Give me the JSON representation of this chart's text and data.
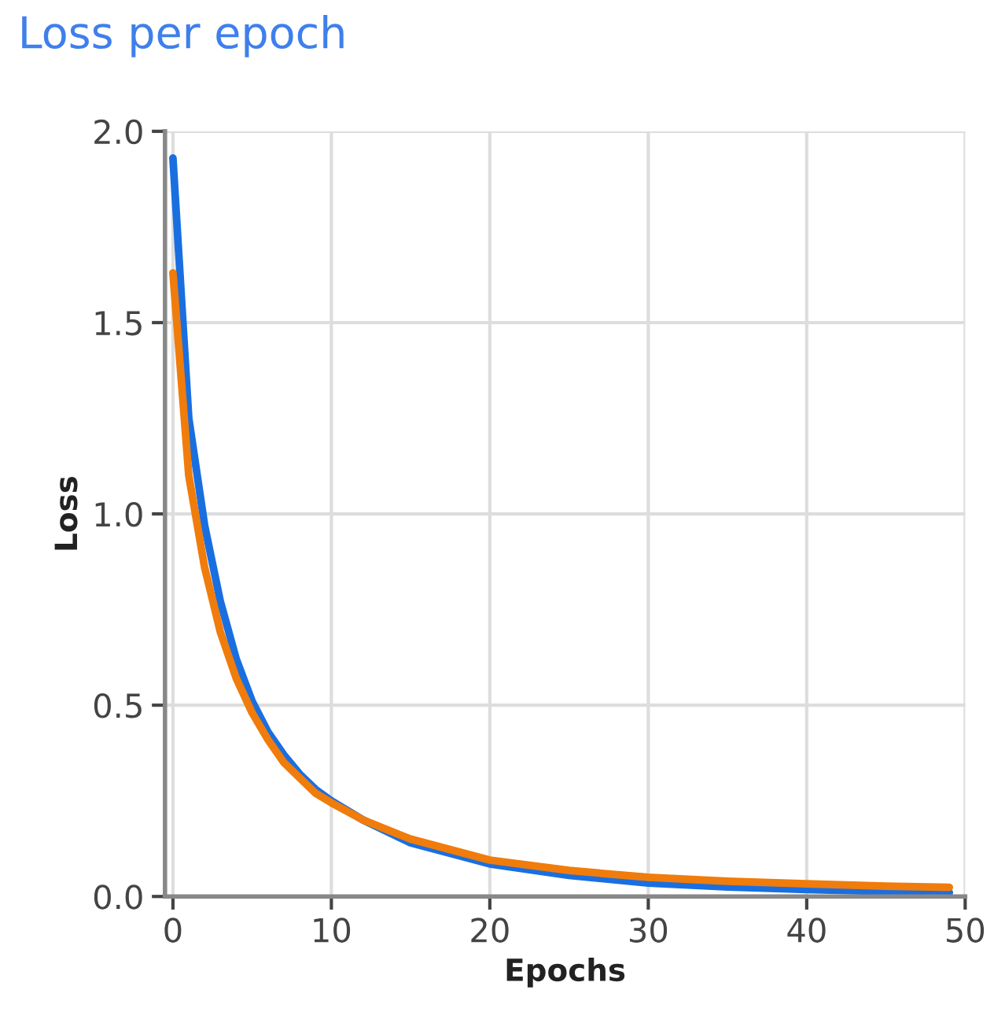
{
  "chart_data": {
    "type": "line",
    "title": "Loss per epoch",
    "xlabel": "Epochs",
    "ylabel": "Loss",
    "xlim": [
      -0.5,
      50
    ],
    "xticks": [
      0,
      10,
      20,
      30,
      40,
      50
    ],
    "ylim": [
      0,
      2
    ],
    "yticks": [
      {
        "value": 0,
        "label": "0.0"
      },
      {
        "value": 0.5,
        "label": "0.5"
      },
      {
        "value": 1,
        "label": "1.0"
      },
      {
        "value": 1.5,
        "label": "1.5"
      },
      {
        "value": 2,
        "label": "2.0"
      }
    ],
    "grid": true,
    "line_style": "solid",
    "marker": "none",
    "series": [
      {
        "color": "#1a6fe0",
        "x": [
          0,
          1,
          2,
          3,
          4,
          5,
          6,
          7,
          8,
          9,
          10,
          12,
          15,
          20,
          25,
          30,
          35,
          40,
          45,
          49
        ],
        "values": [
          1.93,
          1.25,
          0.97,
          0.77,
          0.62,
          0.51,
          0.43,
          0.37,
          0.32,
          0.28,
          0.25,
          0.2,
          0.14,
          0.085,
          0.055,
          0.035,
          0.025,
          0.018,
          0.013,
          0.01
        ]
      },
      {
        "color": "#f07c0c",
        "x": [
          0,
          1,
          2,
          3,
          4,
          5,
          6,
          7,
          8,
          9,
          10,
          12,
          15,
          20,
          25,
          30,
          35,
          40,
          45,
          49
        ],
        "values": [
          1.63,
          1.1,
          0.86,
          0.69,
          0.57,
          0.48,
          0.41,
          0.35,
          0.31,
          0.27,
          0.245,
          0.2,
          0.15,
          0.095,
          0.068,
          0.05,
          0.04,
          0.033,
          0.027,
          0.024
        ]
      }
    ]
  }
}
